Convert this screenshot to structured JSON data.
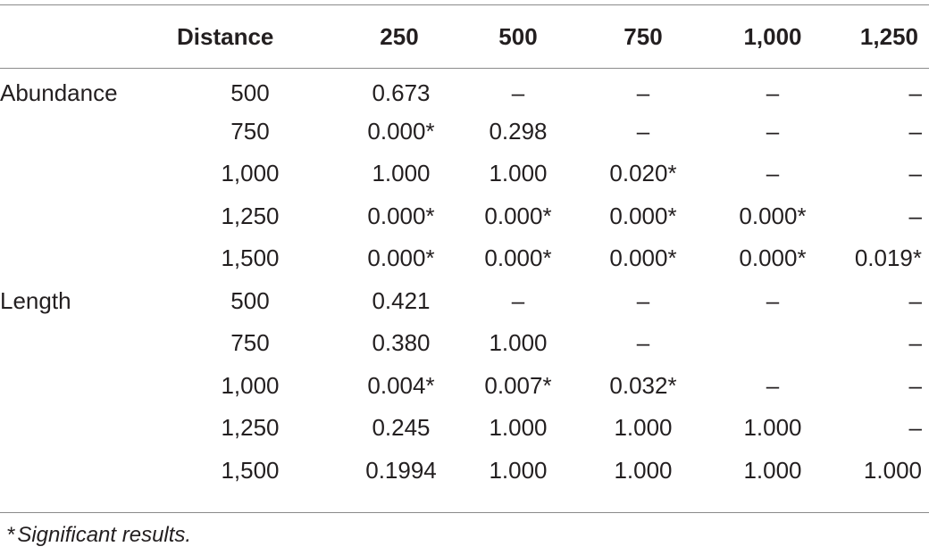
{
  "table": {
    "headers": [
      "",
      "Distance",
      "250",
      "500",
      "750",
      "1,000",
      "1,250"
    ],
    "rows": [
      {
        "group": "Abundance",
        "distance": "500",
        "values": [
          "0.673",
          "–",
          "–",
          "–",
          "–"
        ]
      },
      {
        "group": "",
        "distance": "750",
        "values": [
          "0.000*",
          "0.298",
          "–",
          "–",
          "–"
        ]
      },
      {
        "group": "",
        "distance": "1,000",
        "values": [
          "1.000",
          "1.000",
          "0.020*",
          "–",
          "–"
        ]
      },
      {
        "group": "",
        "distance": "1,250",
        "values": [
          "0.000*",
          "0.000*",
          "0.000*",
          "0.000*",
          "–"
        ]
      },
      {
        "group": "",
        "distance": "1,500",
        "values": [
          "0.000*",
          "0.000*",
          "0.000*",
          "0.000*",
          "0.019*"
        ]
      },
      {
        "group": "Length",
        "distance": "500",
        "values": [
          "0.421",
          "–",
          "–",
          "–",
          "–"
        ]
      },
      {
        "group": "",
        "distance": "750",
        "values": [
          "0.380",
          "1.000",
          "–",
          "",
          "–"
        ]
      },
      {
        "group": "",
        "distance": "1,000",
        "values": [
          "0.004*",
          "0.007*",
          "0.032*",
          "–",
          "–"
        ]
      },
      {
        "group": "",
        "distance": "1,250",
        "values": [
          "0.245",
          "1.000",
          "1.000",
          "1.000",
          "–"
        ]
      },
      {
        "group": "",
        "distance": "1,500",
        "values": [
          "0.1994",
          "1.000",
          "1.000",
          "1.000",
          "1.000"
        ]
      }
    ]
  },
  "footnote": {
    "marker": "*",
    "text": "Significant results."
  }
}
